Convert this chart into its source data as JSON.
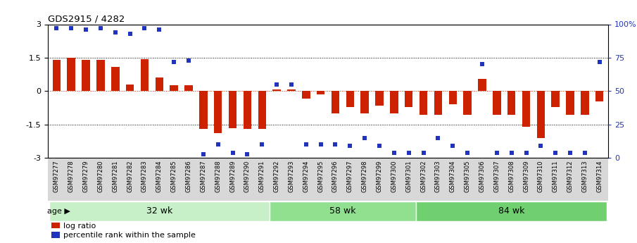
{
  "title": "GDS2915 / 4282",
  "samples": [
    "GSM97277",
    "GSM97278",
    "GSM97279",
    "GSM97280",
    "GSM97281",
    "GSM97282",
    "GSM97283",
    "GSM97284",
    "GSM97285",
    "GSM97286",
    "GSM97287",
    "GSM97288",
    "GSM97289",
    "GSM97290",
    "GSM97291",
    "GSM97292",
    "GSM97293",
    "GSM97294",
    "GSM97295",
    "GSM97296",
    "GSM97297",
    "GSM97298",
    "GSM97299",
    "GSM97300",
    "GSM97301",
    "GSM97302",
    "GSM97303",
    "GSM97304",
    "GSM97305",
    "GSM97306",
    "GSM97307",
    "GSM97308",
    "GSM97309",
    "GSM97310",
    "GSM97311",
    "GSM97312",
    "GSM97313",
    "GSM97314"
  ],
  "log_ratio": [
    1.4,
    1.5,
    1.4,
    1.4,
    1.1,
    0.3,
    1.45,
    0.6,
    0.27,
    0.27,
    -1.7,
    -1.9,
    -1.65,
    -1.7,
    -1.7,
    0.07,
    0.07,
    -0.35,
    -0.15,
    -1.0,
    -0.7,
    -1.0,
    -0.65,
    -1.0,
    -0.7,
    -1.05,
    -1.05,
    -0.6,
    -1.05,
    0.55,
    -1.05,
    -1.05,
    -1.6,
    -2.1,
    -0.7,
    -1.05,
    -1.05,
    -0.45
  ],
  "percentile_pct": [
    97,
    97,
    96,
    97,
    94,
    93,
    97,
    96,
    72,
    73,
    3,
    10,
    4,
    3,
    10,
    55,
    55,
    10,
    10,
    10,
    9,
    15,
    9,
    4,
    4,
    4,
    15,
    9,
    4,
    70,
    4,
    4,
    4,
    9,
    4,
    4,
    4,
    72
  ],
  "groups": [
    {
      "label": "32 wk",
      "start": 0,
      "end": 15,
      "color": "#c8f0c8"
    },
    {
      "label": "58 wk",
      "start": 15,
      "end": 25,
      "color": "#90e090"
    },
    {
      "label": "84 wk",
      "start": 25,
      "end": 38,
      "color": "#70d070"
    }
  ],
  "bar_color": "#cc2200",
  "dot_color": "#2233bb",
  "ylim": [
    -3,
    3
  ],
  "yticks_left": [
    -3,
    -1.5,
    0,
    1.5,
    3
  ],
  "yticks_right_vals": [
    -3,
    -1.5,
    0,
    1.5,
    3
  ],
  "yticks_right_labels": [
    "0",
    "25",
    "50",
    "75",
    "100%"
  ],
  "bg_color": "#ffffff",
  "plot_bg": "#ffffff",
  "label_strip_color": "#d8d8d8",
  "legend_log_ratio_label": "log ratio",
  "legend_percentile_label": "percentile rank within the sample",
  "age_label": "age"
}
